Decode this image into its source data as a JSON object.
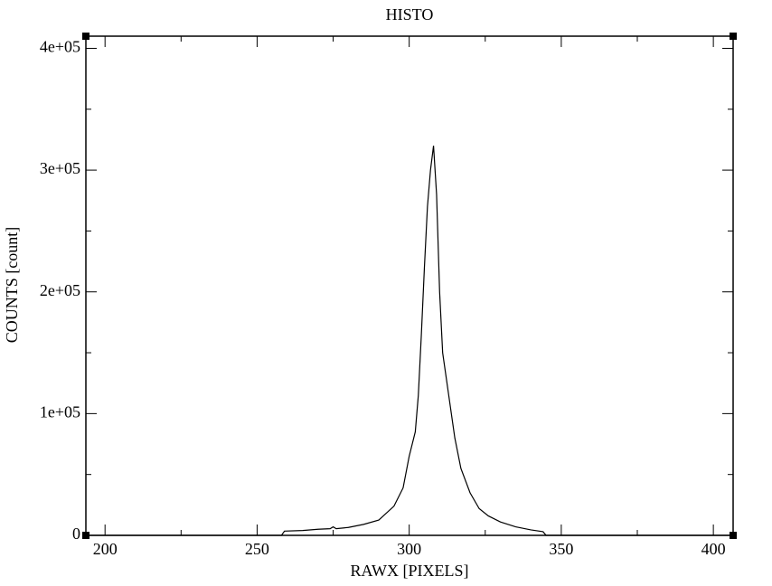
{
  "chart_data": {
    "type": "line",
    "title": "HISTO",
    "x_label": "RAWX [PIXELS]",
    "y_label": "COUNTS [count]",
    "x": [
      194,
      258,
      259,
      265,
      270,
      274,
      275,
      276,
      280,
      285,
      290,
      295,
      298,
      300,
      302,
      303,
      304,
      305,
      306,
      307,
      308,
      309,
      310,
      311,
      313,
      315,
      317,
      320,
      323,
      326,
      330,
      335,
      340,
      344,
      345,
      406
    ],
    "values": [
      0,
      0,
      3500,
      4000,
      5000,
      5500,
      7000,
      5500,
      6500,
      9000,
      12600,
      24000,
      39000,
      65000,
      85000,
      115000,
      165000,
      220000,
      270000,
      300000,
      320000,
      280000,
      200000,
      150000,
      115000,
      80000,
      55000,
      35000,
      22000,
      16000,
      11000,
      7000,
      4500,
      3000,
      0,
      0
    ],
    "color": "#000000",
    "xlim": [
      193.7,
      406.5
    ],
    "xticks": [
      200,
      250,
      300,
      350,
      400
    ],
    "xminorticks": [
      225,
      275,
      325,
      375
    ],
    "ylim": [
      0,
      410000
    ],
    "yticks": [
      0,
      {
        "value": 100000,
        "label": "1e+05"
      },
      {
        "value": 200000,
        "label": "2e+05"
      },
      {
        "value": 300000,
        "label": "3e+05"
      },
      {
        "value": 400000,
        "label": "4e+05"
      }
    ],
    "yminorticks": [
      50000,
      150000,
      250000,
      350000
    ]
  }
}
